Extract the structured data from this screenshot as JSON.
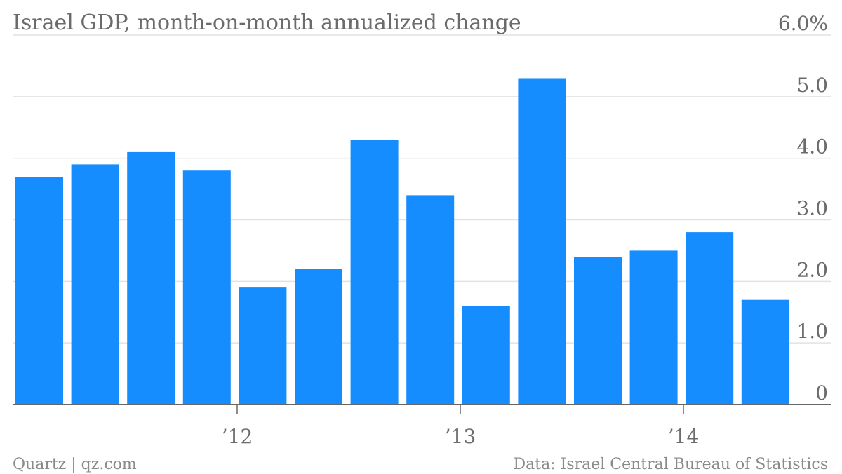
{
  "chart_data": {
    "type": "bar",
    "title": "Israel GDP, month-on-month annualized change",
    "x_tick_labels": [
      "’12",
      "’13",
      "’14"
    ],
    "y_tick_labels": [
      "0",
      "1.0",
      "2.0",
      "3.0",
      "4.0",
      "5.0",
      "6.0%"
    ],
    "ylim": [
      0,
      6
    ],
    "values": [
      3.7,
      3.9,
      4.1,
      3.8,
      1.9,
      2.2,
      4.3,
      3.4,
      1.6,
      5.3,
      2.4,
      2.5,
      2.8,
      1.7
    ],
    "grid": true,
    "bar_color": "#168dff",
    "axis_color": "#666666",
    "grid_color": "#e2e2e2"
  },
  "footer": {
    "source_left": "Quartz | qz.com",
    "source_right": "Data: Israel Central Bureau of Statistics"
  }
}
